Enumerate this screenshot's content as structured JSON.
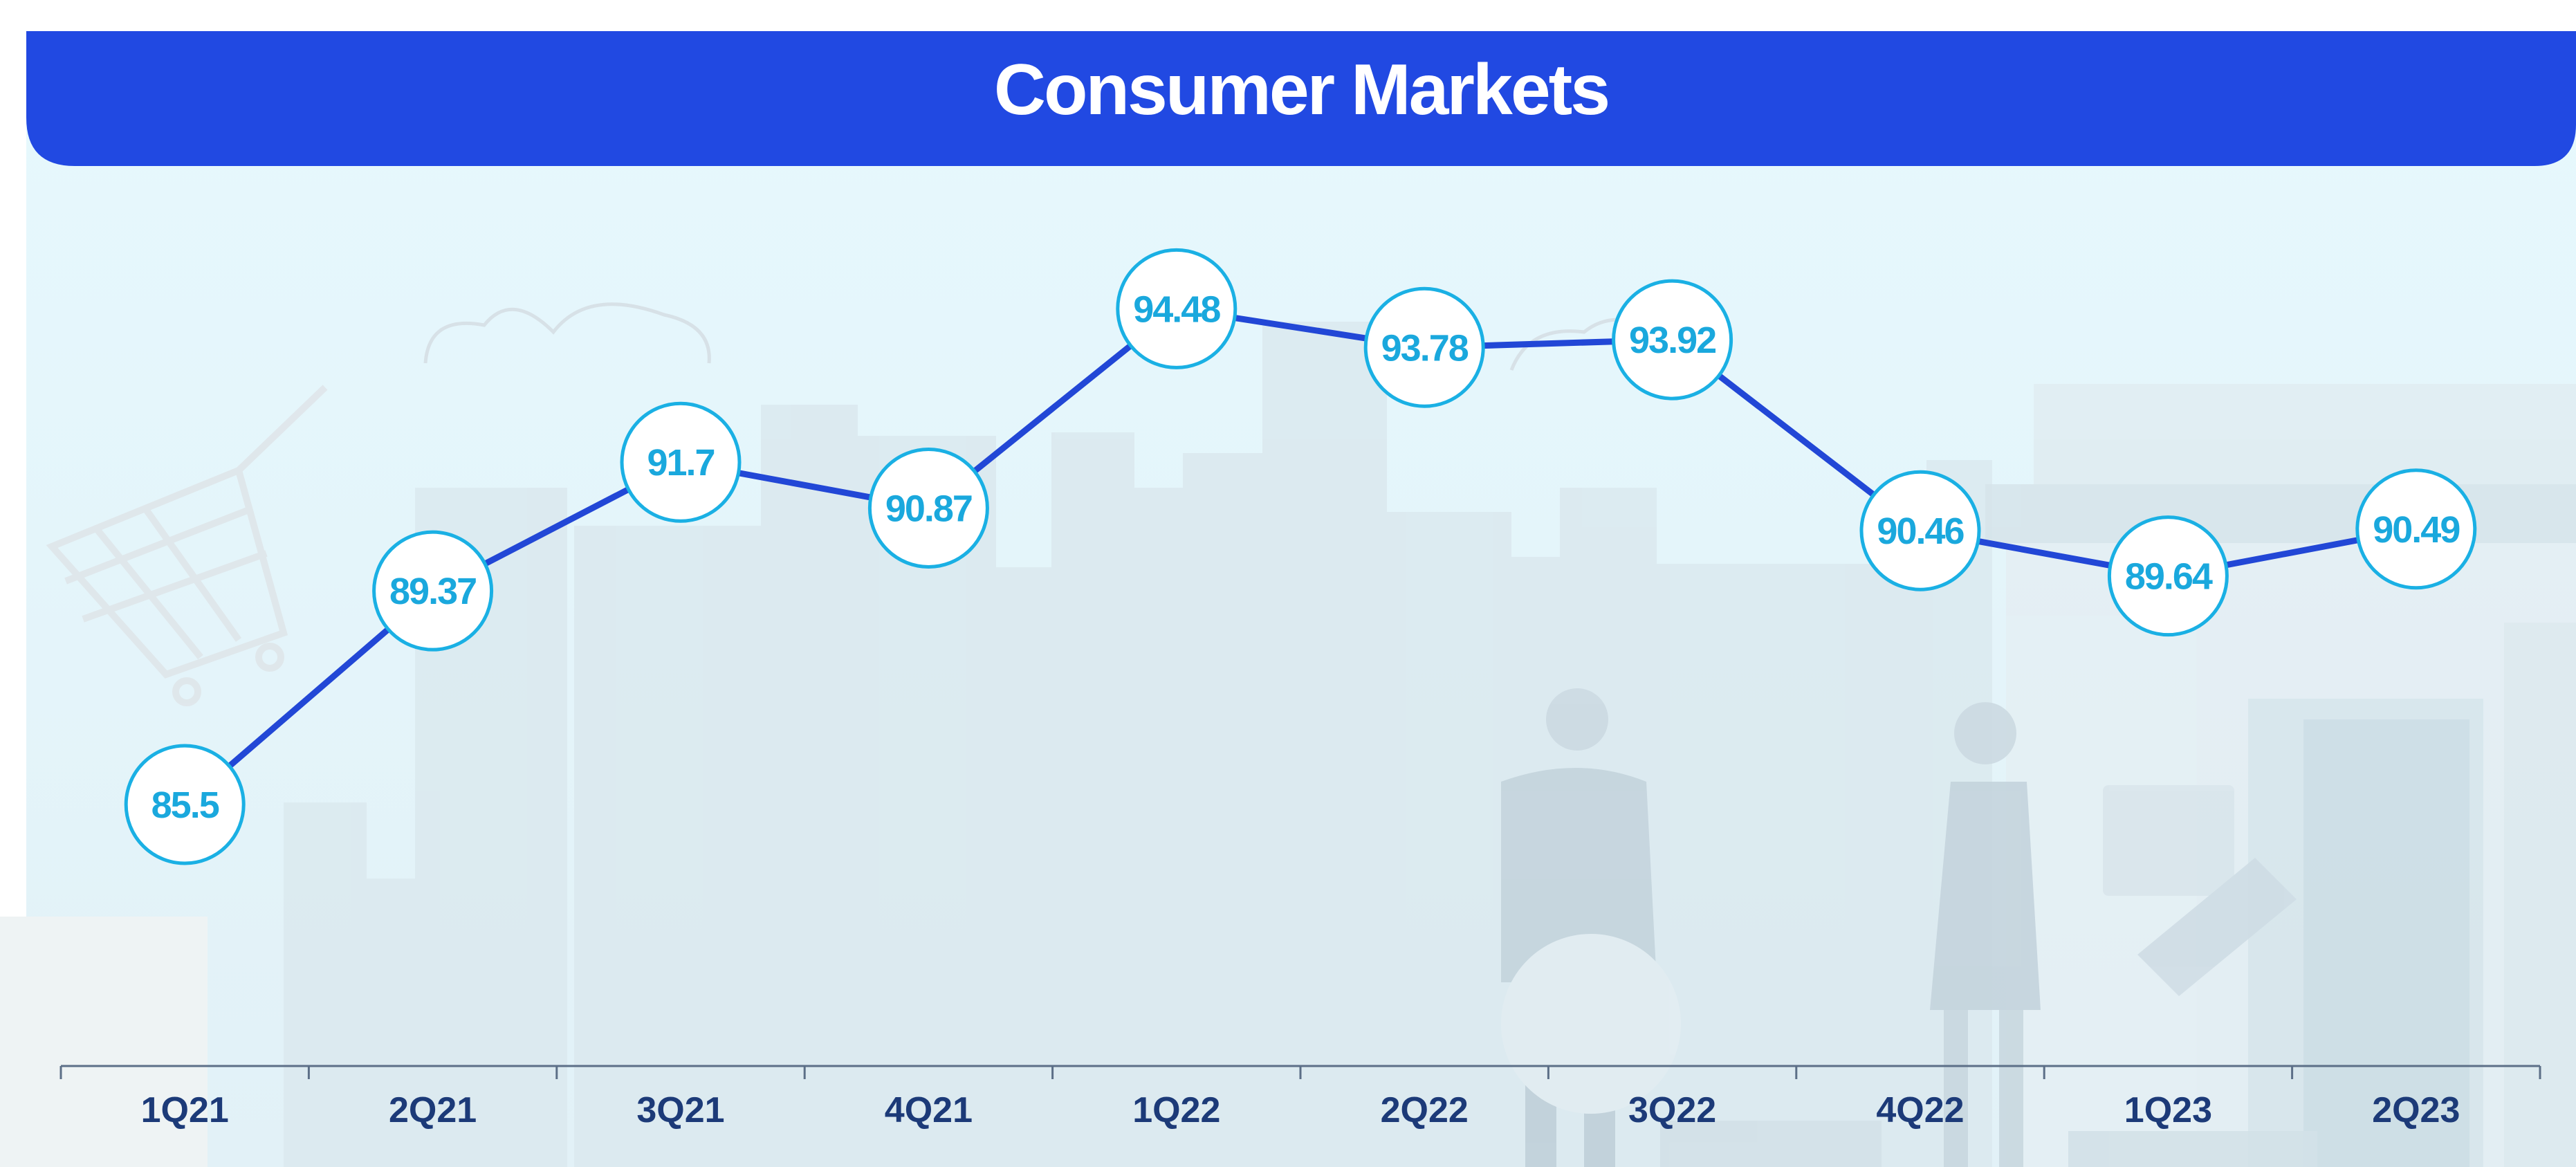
{
  "chart_data": {
    "type": "line",
    "title": "Consumer Markets",
    "categories": [
      "1Q21",
      "2Q21",
      "3Q21",
      "4Q21",
      "1Q22",
      "2Q22",
      "3Q22",
      "4Q22",
      "1Q23",
      "2Q23"
    ],
    "series": [
      {
        "values": [
          85.5,
          89.37,
          91.7,
          90.87,
          94.48,
          93.78,
          93.92,
          90.46,
          89.64,
          90.49
        ]
      }
    ],
    "data_labels": [
      "85.5",
      "89.37",
      "91.7",
      "90.87",
      "94.48",
      "93.78",
      "93.92",
      "90.46",
      "89.64",
      "90.49"
    ],
    "ylim": [
      80,
      100
    ],
    "grid": false,
    "legend": "none"
  },
  "colors": {
    "title_bar": "#2149e2",
    "line": "#2247d6",
    "marker_stroke": "#1ab0e4",
    "marker_fill": "#ffffff",
    "label_text": "#1aa8dd",
    "axis": "#5c6f87",
    "category_text": "#1c3a78",
    "background": "#e3f6fb"
  }
}
